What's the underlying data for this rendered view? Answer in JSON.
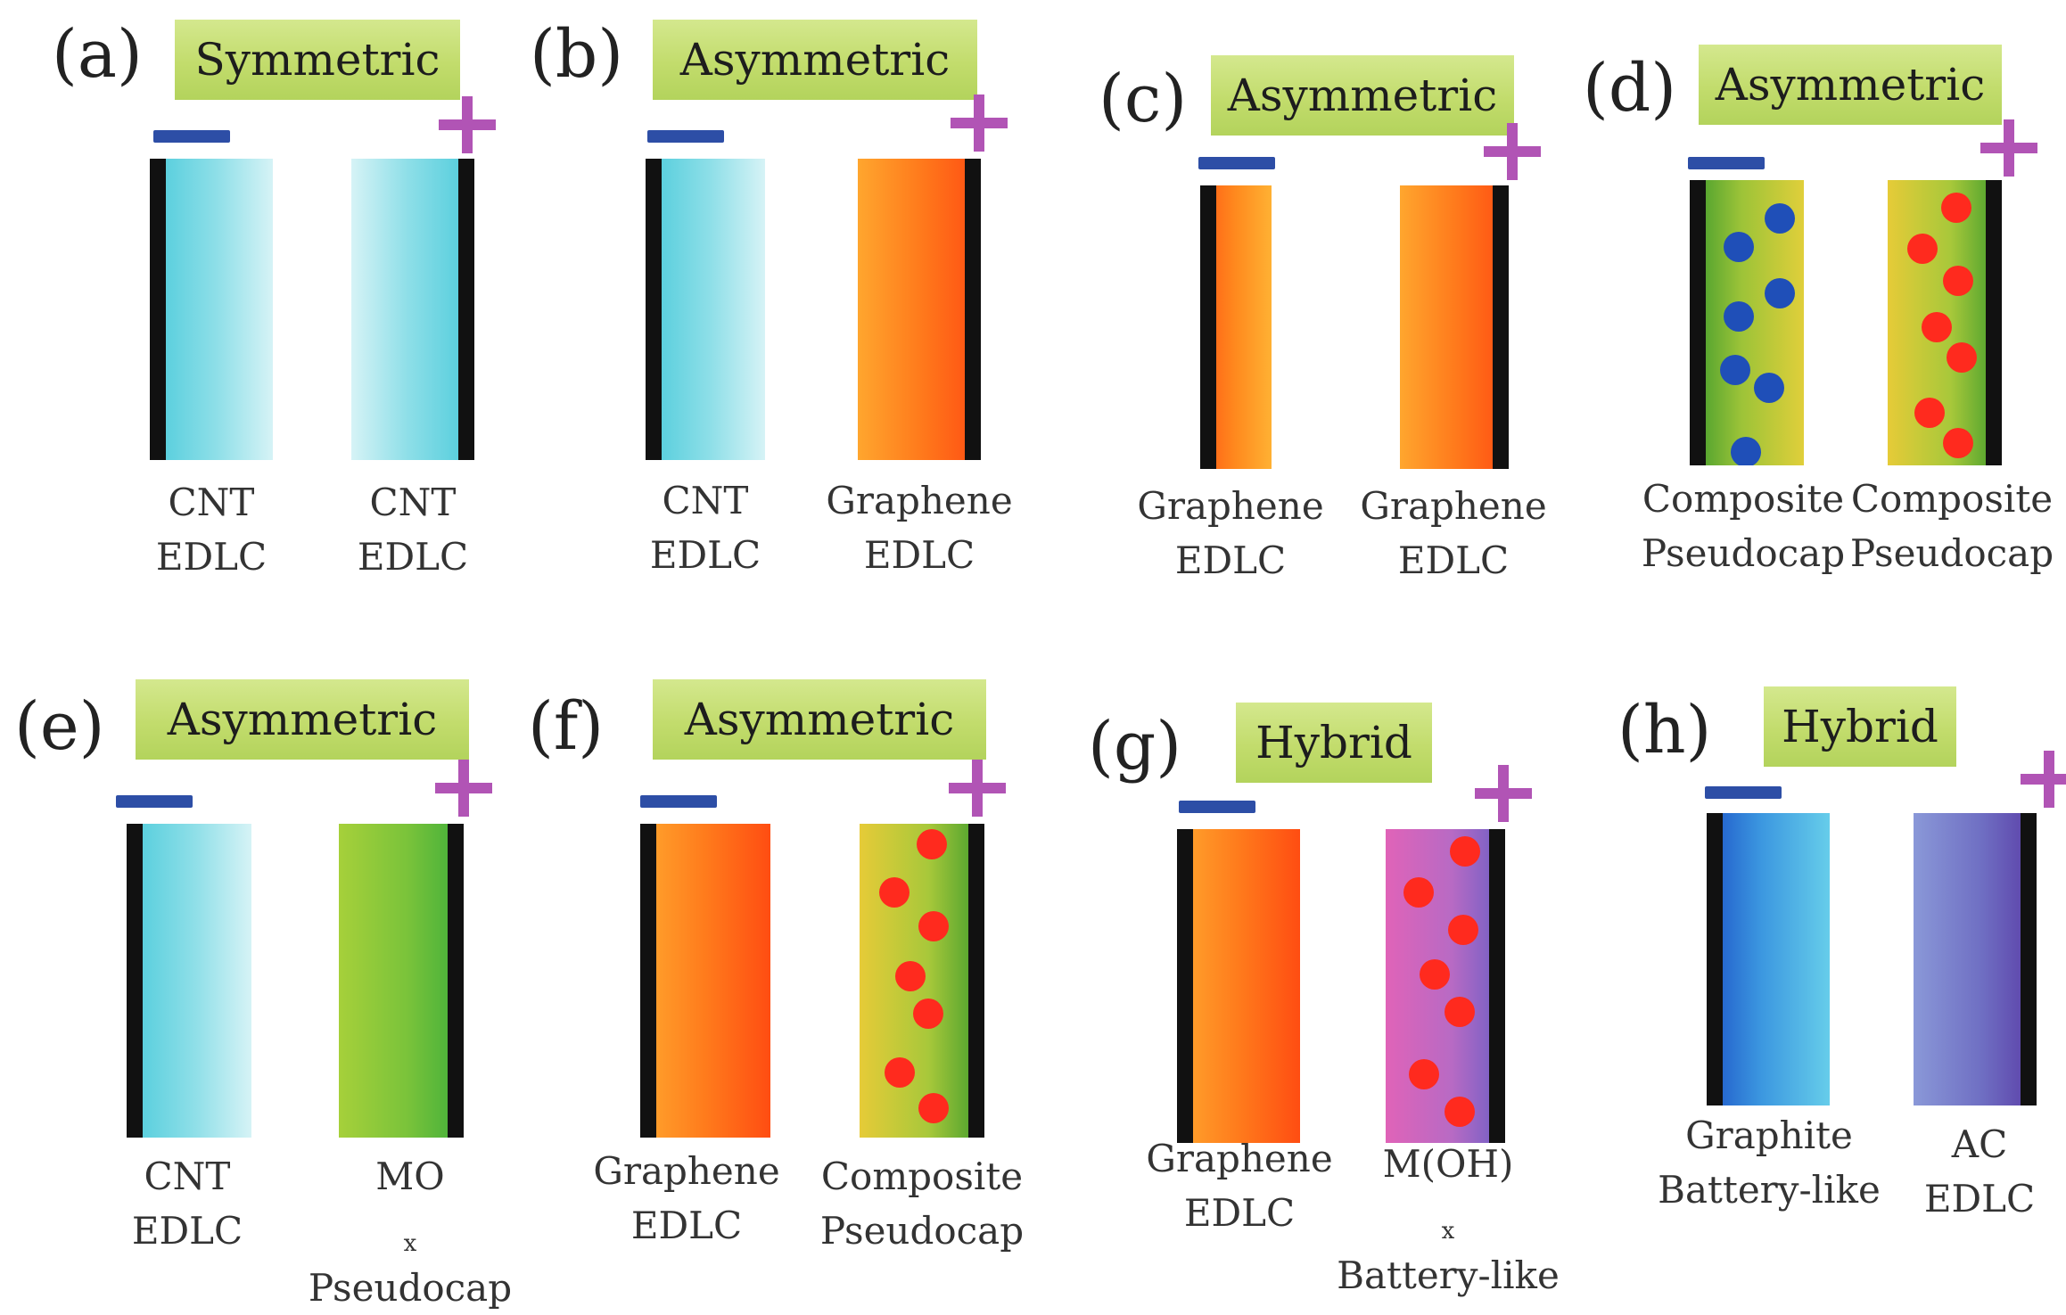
{
  "panels": [
    {
      "letter": "(a)",
      "type": "Symmetric",
      "left": [
        "CNT",
        "EDLC"
      ],
      "right": [
        "CNT",
        "EDLC"
      ]
    },
    {
      "letter": "(b)",
      "type": "Asymmetric",
      "left": [
        "CNT",
        "EDLC"
      ],
      "right": [
        "Graphene",
        "EDLC"
      ]
    },
    {
      "letter": "(c)",
      "type": "Asymmetric",
      "left": [
        "Graphene",
        "EDLC"
      ],
      "right": [
        "Graphene",
        "EDLC"
      ]
    },
    {
      "letter": "(d)",
      "type": "Asymmetric",
      "left": [
        "Composite",
        "Pseudocap"
      ],
      "right": [
        "Composite",
        "Pseudocap"
      ]
    },
    {
      "letter": "(e)",
      "type": "Asymmetric",
      "left": [
        "CNT",
        "EDLC"
      ],
      "right": [
        "MO",
        "x",
        "Pseudocap"
      ]
    },
    {
      "letter": "(f)",
      "type": "Asymmetric",
      "left": [
        "Graphene",
        "EDLC"
      ],
      "right": [
        "Composite",
        "Pseudocap"
      ]
    },
    {
      "letter": "(g)",
      "type": "Hybrid",
      "left": [
        "Graphene",
        "EDLC"
      ],
      "right": [
        "M(OH)",
        "x",
        "Battery-like"
      ]
    },
    {
      "letter": "(h)",
      "type": "Hybrid",
      "left": [
        "Graphite",
        "Battery-like"
      ],
      "right": [
        "AC",
        "EDLC"
      ]
    }
  ],
  "colors": {
    "negative_terminal": "#2d4ea6",
    "positive_terminal": "#b154b5",
    "type_tag": "#c2dc6c",
    "collector": "#111111"
  }
}
